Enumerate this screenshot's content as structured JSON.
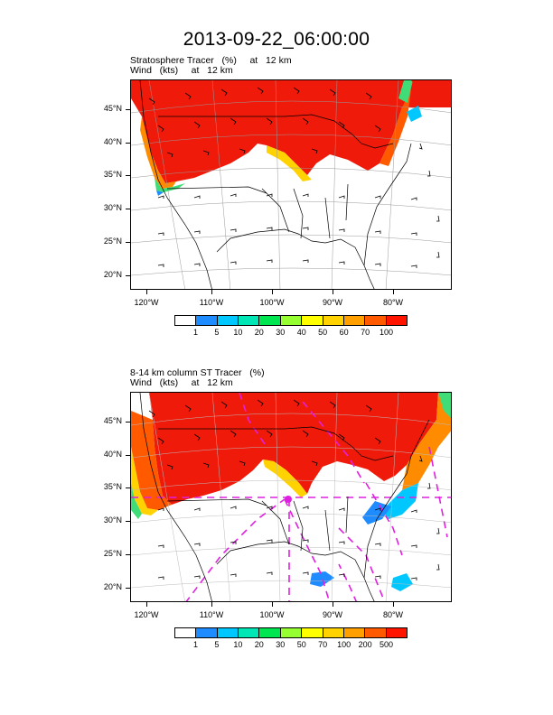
{
  "title": "2013-09-22_06:00:00",
  "panels": [
    {
      "line1": "Stratosphere Tracer   (%)     at   12 km",
      "line2": "Wind   (kts)     at   12 km",
      "lat_labels": [
        "45°N",
        "40°N",
        "35°N",
        "30°N",
        "25°N",
        "20°N"
      ],
      "lon_labels": [
        "120°W",
        "110°W",
        "100°W",
        "90°W",
        "80°W"
      ],
      "colorbar_colors": [
        "#ffffff",
        "#1e8cff",
        "#00c8ff",
        "#00e6b4",
        "#00e650",
        "#96ff32",
        "#ffff00",
        "#ffd200",
        "#ffa000",
        "#ff5a00",
        "#ff1400"
      ],
      "colorbar_labels": [
        "1",
        "5",
        "10",
        "20",
        "30",
        "40",
        "50",
        "60",
        "70",
        "100"
      ]
    },
    {
      "line1": "8-14 km column ST Tracer   (%)",
      "line2": "Wind   (kts)     at   12 km",
      "lat_labels": [
        "45°N",
        "40°N",
        "35°N",
        "30°N",
        "25°N",
        "20°N"
      ],
      "lon_labels": [
        "120°W",
        "110°W",
        "100°W",
        "90°W",
        "80°W"
      ],
      "colorbar_colors": [
        "#ffffff",
        "#1e8cff",
        "#00c8ff",
        "#00e6b4",
        "#00e650",
        "#96ff32",
        "#ffff00",
        "#ffd200",
        "#ffa000",
        "#ff5a00",
        "#ff1400"
      ],
      "colorbar_labels": [
        "1",
        "5",
        "10",
        "20",
        "30",
        "50",
        "70",
        "100",
        "200",
        "500"
      ]
    }
  ]
}
